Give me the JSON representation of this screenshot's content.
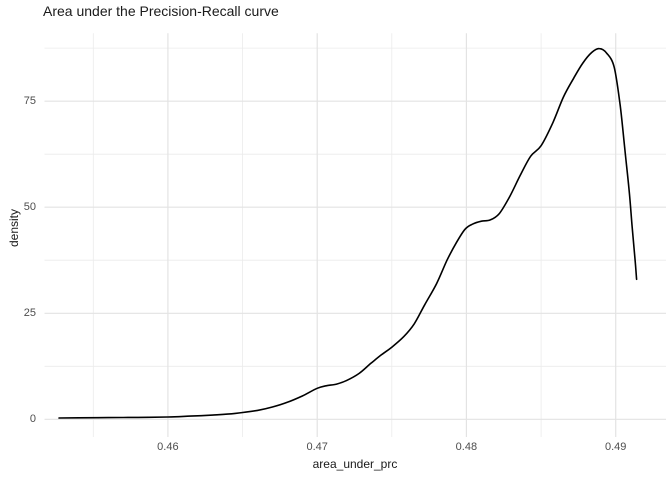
{
  "title": "Area under the Precision-Recall curve",
  "chart_data": {
    "type": "line",
    "subtype": "density-curve",
    "title": "Area under the Precision-Recall curve",
    "xlabel": "area_under_prc",
    "ylabel": "density",
    "legend": "none",
    "grid": "on",
    "xlim": [
      0.45173,
      0.49337
    ],
    "ylim": [
      -4.17,
      91.0
    ],
    "x_ticks_major": [
      0.46,
      0.47,
      0.48,
      0.49
    ],
    "x_tick_labels": [
      "0.46",
      "0.47",
      "0.48",
      "0.49"
    ],
    "x_ticks_minor": [
      0.455,
      0.465,
      0.475,
      0.485
    ],
    "y_ticks_major": [
      0,
      25,
      50,
      75
    ],
    "y_tick_labels": [
      "0",
      "25",
      "50",
      "75"
    ],
    "y_ticks_minor": [
      12.5,
      37.5,
      62.5,
      87.5
    ],
    "series": [
      {
        "name": "density",
        "x": [
          0.4527,
          0.454,
          0.456,
          0.458,
          0.46,
          0.4615,
          0.463,
          0.4645,
          0.466,
          0.467,
          0.468,
          0.469,
          0.47,
          0.4706,
          0.4713,
          0.472,
          0.4728,
          0.4736,
          0.4743,
          0.475,
          0.4758,
          0.4765,
          0.4772,
          0.478,
          0.4787,
          0.4793,
          0.4799,
          0.4804,
          0.481,
          0.4816,
          0.4822,
          0.4829,
          0.4836,
          0.4843,
          0.485,
          0.4858,
          0.4865,
          0.4872,
          0.4878,
          0.4884,
          0.4889,
          0.4894,
          0.4899,
          0.4903,
          0.4906,
          0.4909,
          0.4911,
          0.4913,
          0.4914
        ],
        "y": [
          0.3,
          0.35,
          0.4,
          0.45,
          0.55,
          0.75,
          1.0,
          1.4,
          2.1,
          2.9,
          4.0,
          5.5,
          7.3,
          7.9,
          8.3,
          9.2,
          10.8,
          13.2,
          15.2,
          17.0,
          19.5,
          22.5,
          27.0,
          32.0,
          37.5,
          41.5,
          44.8,
          46.0,
          46.7,
          47.0,
          48.5,
          52.5,
          57.5,
          62.0,
          64.5,
          70.0,
          76.0,
          80.5,
          84.0,
          86.5,
          87.4,
          86.3,
          83.0,
          74.0,
          64.0,
          54.0,
          45.5,
          37.5,
          33.0
        ]
      }
    ],
    "colors": {
      "line": "#000000",
      "grid_major": "#e3e3e3",
      "grid_minor": "#ebebeb",
      "tick_text": "#4d4d4d",
      "title_text": "#1a1a1a",
      "background": "#ffffff"
    }
  }
}
